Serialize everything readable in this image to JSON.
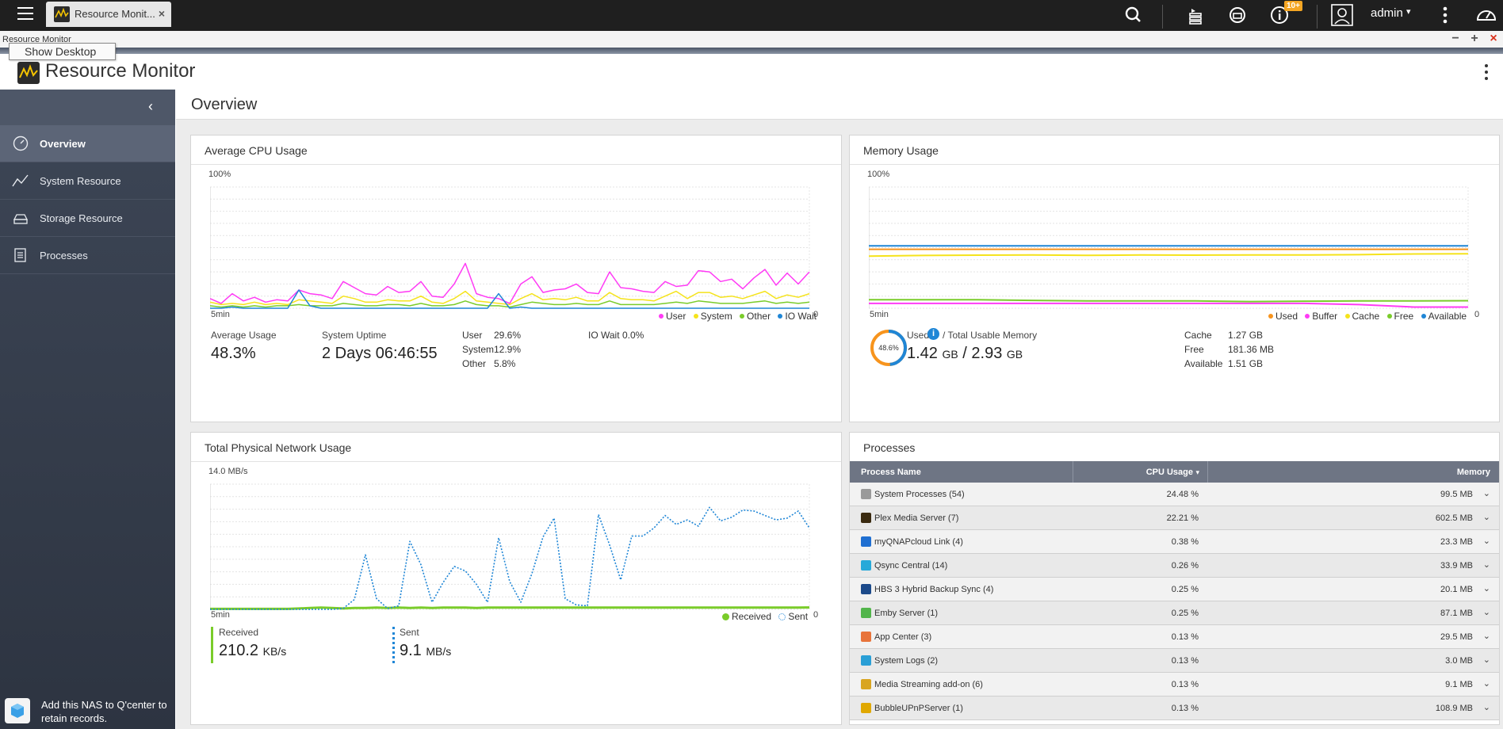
{
  "taskbar": {
    "tab_label": "Resource Monit...",
    "tab_close": "×",
    "notification_badge": "10+",
    "user_name": "admin",
    "user_caret": "▾"
  },
  "window": {
    "title": "Resource Monitor",
    "tooltip": "Show Desktop",
    "minimize": "−",
    "maximize": "+",
    "close": "×"
  },
  "app": {
    "title": "Resource Monitor",
    "collapse": "‹"
  },
  "sidebar": {
    "items": [
      {
        "label": "Overview",
        "icon": "gauge-icon",
        "active": true
      },
      {
        "label": "System Resource",
        "icon": "line-chart-icon",
        "active": false
      },
      {
        "label": "Storage Resource",
        "icon": "storage-icon",
        "active": false
      },
      {
        "label": "Processes",
        "icon": "list-icon",
        "active": false
      }
    ],
    "qcenter_text": "Add this NAS to Q'center to retain records."
  },
  "page": {
    "title": "Overview"
  },
  "cpu": {
    "title": "Average CPU Usage",
    "y_top": "100%",
    "x_left": "5min",
    "x_right": "0",
    "legend": [
      {
        "name": "User",
        "color": "#ff3bf5"
      },
      {
        "name": "System",
        "color": "#f5e31b"
      },
      {
        "name": "Other",
        "color": "#7acc2a"
      },
      {
        "name": "IO Wait",
        "color": "#1f86d6"
      }
    ],
    "average_label": "Average Usage",
    "average_value": "48.3%",
    "uptime_label": "System Uptime",
    "uptime_value": "2 Days 06:46:55",
    "user_label": "User",
    "user_value": "29.6%",
    "system_label": "System",
    "system_value": "12.9%",
    "other_label": "Other",
    "other_value": "5.8%",
    "iowait_label": "IO Wait",
    "iowait_value": "0.0%"
  },
  "memory": {
    "title": "Memory Usage",
    "y_top": "100%",
    "x_left": "5min",
    "x_right": "0",
    "legend": [
      {
        "name": "Used",
        "color": "#f7941d"
      },
      {
        "name": "Buffer",
        "color": "#ff3bf5"
      },
      {
        "name": "Cache",
        "color": "#f5e31b"
      },
      {
        "name": "Free",
        "color": "#7acc2a"
      },
      {
        "name": "Available",
        "color": "#1f86d6"
      }
    ],
    "ring_value": "48.6%",
    "ring_fraction": 0.486,
    "used_label": "Used",
    "total_label": "/ Total Usable Memory",
    "used_value": "1.42",
    "used_unit": "GB",
    "separator": "/",
    "total_value": "2.93",
    "total_unit": "GB",
    "cache_label": "Cache",
    "cache_value": "1.27 GB",
    "free_label": "Free",
    "free_value": "181.36 MB",
    "available_label": "Available",
    "available_value": "1.51 GB"
  },
  "network": {
    "title": "Total Physical Network Usage",
    "y_top": "14.0 MB/s",
    "x_left": "5min",
    "x_right": "0",
    "legend": [
      {
        "name": "Received",
        "color": "#7acc2a"
      },
      {
        "name": "Sent",
        "color": "#1f86d6"
      }
    ],
    "received_label": "Received",
    "received_value": "210.2",
    "received_unit": "KB/s",
    "sent_label": "Sent",
    "sent_value": "9.1",
    "sent_unit": "MB/s"
  },
  "processes": {
    "title": "Processes",
    "columns": [
      "Process Name",
      "CPU Usage",
      "Memory"
    ],
    "sort_indicator": "▾",
    "expand_glyph": "⌄",
    "rows": [
      {
        "name": "System Processes (54)",
        "cpu": "24.48 %",
        "memory": "99.5 MB",
        "icon_color": "#9a9a9a"
      },
      {
        "name": "Plex Media Server (7)",
        "cpu": "22.21 %",
        "memory": "602.5 MB",
        "icon_color": "#3a2a10"
      },
      {
        "name": "myQNAPcloud Link (4)",
        "cpu": "0.38 %",
        "memory": "23.3 MB",
        "icon_color": "#1f6fd1"
      },
      {
        "name": "Qsync Central (14)",
        "cpu": "0.26 %",
        "memory": "33.9 MB",
        "icon_color": "#27a9d9"
      },
      {
        "name": "HBS 3 Hybrid Backup Sync (4)",
        "cpu": "0.25 %",
        "memory": "20.1 MB",
        "icon_color": "#1c4a8a"
      },
      {
        "name": "Emby Server (1)",
        "cpu": "0.25 %",
        "memory": "87.1 MB",
        "icon_color": "#52b54b"
      },
      {
        "name": "App Center (3)",
        "cpu": "0.13 %",
        "memory": "29.5 MB",
        "icon_color": "#e8743b"
      },
      {
        "name": "System Logs (2)",
        "cpu": "0.13 %",
        "memory": "3.0 MB",
        "icon_color": "#2a9fd6"
      },
      {
        "name": "Media Streaming add-on (6)",
        "cpu": "0.13 %",
        "memory": "9.1 MB",
        "icon_color": "#d9a520"
      },
      {
        "name": "BubbleUPnPServer (1)",
        "cpu": "0.13 %",
        "memory": "108.9 MB",
        "icon_color": "#e0a800"
      }
    ]
  },
  "chart_data": [
    {
      "type": "line",
      "title": "Average CPU Usage",
      "ylim": [
        0,
        100
      ],
      "y_unit": "%",
      "x_range": "5min to 0",
      "series": [
        {
          "name": "User",
          "values": [
            8,
            4,
            12,
            6,
            9,
            5,
            7,
            6,
            15,
            12,
            11,
            8,
            22,
            17,
            12,
            11,
            18,
            13,
            14,
            22,
            10,
            9,
            20,
            37,
            12,
            9,
            8,
            4,
            20,
            26,
            13,
            15,
            16,
            20,
            13,
            12,
            30,
            17,
            16,
            14,
            13,
            22,
            18,
            19,
            31,
            30,
            22,
            24,
            16,
            25,
            32,
            19,
            29,
            20,
            30
          ]
        },
        {
          "name": "System",
          "values": [
            5,
            3,
            4,
            3,
            5,
            3,
            4,
            3,
            7,
            6,
            5,
            4,
            10,
            8,
            5,
            5,
            7,
            6,
            6,
            10,
            5,
            4,
            8,
            14,
            6,
            5,
            4,
            3,
            8,
            12,
            7,
            8,
            7,
            9,
            6,
            6,
            13,
            8,
            7,
            7,
            6,
            10,
            14,
            8,
            13,
            13,
            9,
            10,
            8,
            11,
            14,
            8,
            11,
            9,
            12
          ]
        },
        {
          "name": "Other",
          "values": [
            2,
            1,
            2,
            1,
            2,
            1,
            2,
            2,
            3,
            2,
            2,
            2,
            4,
            3,
            2,
            2,
            3,
            3,
            2,
            4,
            2,
            2,
            3,
            6,
            3,
            2,
            2,
            1,
            3,
            5,
            4,
            3,
            3,
            4,
            3,
            3,
            6,
            3,
            3,
            3,
            3,
            4,
            5,
            4,
            6,
            5,
            4,
            4,
            4,
            5,
            6,
            4,
            5,
            4,
            5
          ]
        },
        {
          "name": "IO Wait",
          "values": [
            0,
            0,
            1,
            0,
            0,
            0,
            0,
            0,
            15,
            2,
            0,
            0,
            0,
            0,
            0,
            0,
            0,
            0,
            0,
            0,
            0,
            0,
            0,
            0,
            0,
            0,
            12,
            0,
            1,
            0,
            0,
            0,
            0,
            0,
            0,
            0,
            0,
            0,
            0,
            0,
            0,
            0,
            0,
            0,
            0,
            0,
            0,
            0,
            0,
            0,
            0,
            0,
            0,
            0,
            0
          ]
        }
      ]
    },
    {
      "type": "line",
      "title": "Memory Usage",
      "ylim": [
        0,
        100
      ],
      "y_unit": "%",
      "x_range": "5min to 0",
      "series": [
        {
          "name": "Used",
          "values": [
            48.6,
            48.6,
            48.6,
            48.6,
            48.6,
            48.6,
            48.6,
            48.6,
            48.6,
            48.6,
            48.6,
            48.6
          ]
        },
        {
          "name": "Buffer",
          "values": [
            4,
            4,
            4,
            4,
            4,
            4,
            4,
            4,
            4,
            3,
            1,
            1
          ]
        },
        {
          "name": "Cache",
          "values": [
            43,
            43.5,
            43.8,
            44,
            43.6,
            44,
            43.8,
            44,
            43.9,
            44.2,
            44.8,
            45
          ]
        },
        {
          "name": "Free",
          "values": [
            7,
            7,
            7,
            6.5,
            6,
            6,
            6,
            5.5,
            5.8,
            6,
            6,
            6.2
          ]
        },
        {
          "name": "Available",
          "values": [
            51.5,
            51.5,
            51.5,
            51.5,
            51.5,
            51.5,
            51.5,
            51.5,
            51.5,
            51.5,
            51.5,
            51.5
          ]
        }
      ]
    },
    {
      "type": "line",
      "title": "Total Physical Network Usage",
      "ylim": [
        0,
        14.0
      ],
      "y_unit": "MB/s",
      "x_range": "5min to 0",
      "series": [
        {
          "name": "Received",
          "values": [
            0.05,
            0.05,
            0.05,
            0.05,
            0.05,
            0.05,
            0.05,
            0.05,
            0.1,
            0.15,
            0.2,
            0.15,
            0.1,
            0.15,
            0.15,
            0.2,
            0.15,
            0.2,
            0.15,
            0.2,
            0.15,
            0.2,
            0.2,
            0.2,
            0.15,
            0.2,
            0.2,
            0.2,
            0.2,
            0.2,
            0.2,
            0.2,
            0.2,
            0.2,
            0.2,
            0.2,
            0.2,
            0.2,
            0.2,
            0.2,
            0.2,
            0.2,
            0.2,
            0.2,
            0.2,
            0.2,
            0.2,
            0.2,
            0.2,
            0.2,
            0.2,
            0.2,
            0.2,
            0.2,
            0.21
          ]
        },
        {
          "name": "Sent",
          "values": [
            0,
            0,
            0,
            0,
            0,
            0,
            0,
            0,
            0,
            0,
            0,
            0,
            0.1,
            1.1,
            6.1,
            1.2,
            0.1,
            0.4,
            7.6,
            5.0,
            0.8,
            3.0,
            4.8,
            4.3,
            2.8,
            0.8,
            8.0,
            3.1,
            0.8,
            4.0,
            8.1,
            10.2,
            1.2,
            0.5,
            0.4,
            10.6,
            7.2,
            3.3,
            8.2,
            8.2,
            9.1,
            10.5,
            9.5,
            10.0,
            9.3,
            11.4,
            9.9,
            10.3,
            11.1,
            11.0,
            10.5,
            10.0,
            10.2,
            11.0,
            9.1
          ]
        }
      ]
    }
  ]
}
